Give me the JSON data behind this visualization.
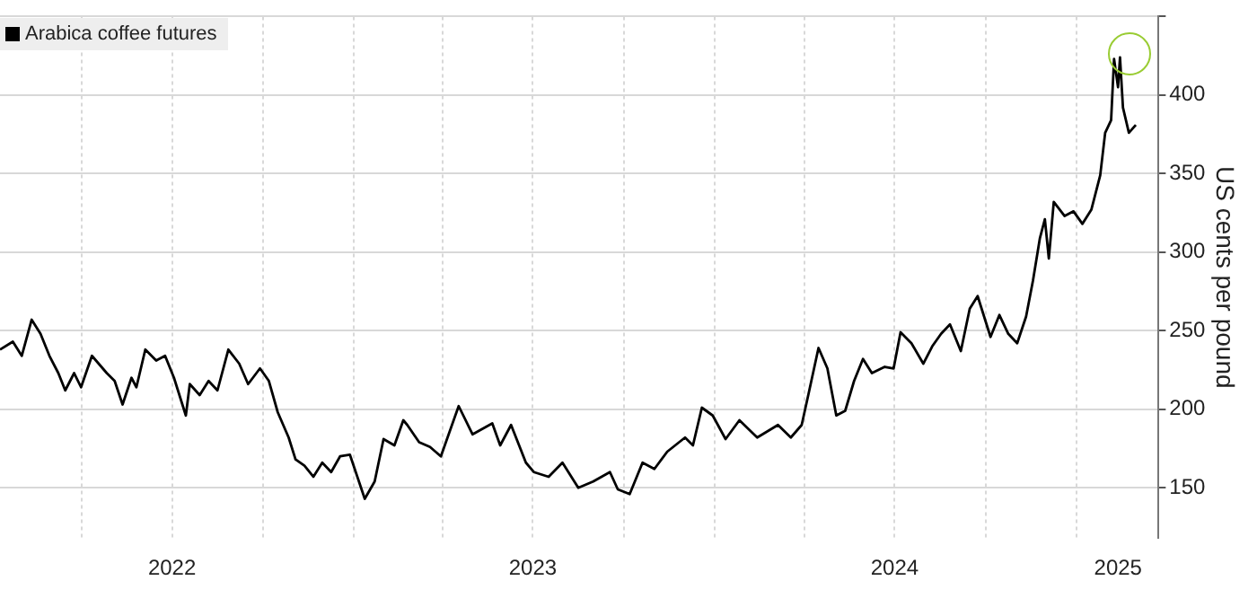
{
  "chart_data": {
    "type": "line",
    "ylabel": "US cents per pound",
    "legend": "top left",
    "grid": true,
    "x": [
      "2022-01-08",
      "2022-01-21",
      "2022-01-30",
      "2022-02-09",
      "2022-02-18",
      "2022-02-27",
      "2022-03-08",
      "2022-03-15",
      "2022-03-24",
      "2022-03-31",
      "2022-04-11",
      "2022-04-26",
      "2022-05-04",
      "2022-05-12",
      "2022-05-21",
      "2022-05-26",
      "2022-06-04",
      "2022-06-15",
      "2022-06-24",
      "2022-07-03",
      "2022-07-15",
      "2022-07-19",
      "2022-07-29",
      "2022-08-07",
      "2022-08-16",
      "2022-08-27",
      "2022-09-07",
      "2022-09-16",
      "2022-09-28",
      "2022-10-07",
      "2022-10-16",
      "2022-10-27",
      "2022-11-03",
      "2022-11-12",
      "2022-11-21",
      "2022-11-30",
      "2022-12-09",
      "2022-12-18",
      "2022-12-28",
      "2023-01-12",
      "2023-01-22",
      "2023-01-31",
      "2023-02-11",
      "2023-02-20",
      "2023-02-24",
      "2023-03-08",
      "2023-03-19",
      "2023-03-30",
      "2023-04-17",
      "2023-05-01",
      "2023-05-21",
      "2023-05-29",
      "2023-06-09",
      "2023-06-24",
      "2023-07-02",
      "2023-07-17",
      "2023-07-31",
      "2023-08-16",
      "2023-08-31",
      "2023-09-17",
      "2023-09-25",
      "2023-10-07",
      "2023-10-20",
      "2023-11-01",
      "2023-11-14",
      "2023-12-02",
      "2023-12-10",
      "2023-12-19",
      "2023-12-30",
      "2024-01-12",
      "2024-01-26",
      "2024-02-13",
      "2024-03-05",
      "2024-03-18",
      "2024-03-29",
      "2024-04-05",
      "2024-04-15",
      "2024-04-24",
      "2024-05-03",
      "2024-05-12",
      "2024-05-21",
      "2024-05-30",
      "2024-06-08",
      "2024-06-21",
      "2024-06-30",
      "2024-07-07",
      "2024-07-18",
      "2024-07-30",
      "2024-08-08",
      "2024-08-17",
      "2024-08-26",
      "2024-09-06",
      "2024-09-15",
      "2024-09-23",
      "2024-10-06",
      "2024-10-15",
      "2024-10-24",
      "2024-11-02",
      "2024-11-11",
      "2024-11-18",
      "2024-11-25",
      "2024-11-30",
      "2024-12-04",
      "2024-12-09",
      "2024-12-20",
      "2024-12-29",
      "2025-01-07",
      "2025-01-16",
      "2025-01-25",
      "2025-01-30",
      "2025-02-05",
      "2025-02-08",
      "2025-02-12",
      "2025-02-14",
      "2025-02-17",
      "2025-02-23",
      "2025-03-02"
    ],
    "series": [
      {
        "name": "Arabica coffee futures",
        "color": "#000000",
        "values": [
          238,
          243,
          234,
          257,
          248,
          234,
          223,
          212,
          223,
          214,
          234,
          223,
          218,
          203,
          220,
          214,
          238,
          231,
          234,
          220,
          196,
          216,
          209,
          218,
          212,
          238,
          229,
          216,
          226,
          218,
          198,
          182,
          168,
          164,
          157,
          166,
          160,
          170,
          171,
          143,
          154,
          181,
          177,
          193,
          190,
          179,
          176,
          170,
          202,
          184,
          191,
          177,
          190,
          166,
          160,
          157,
          166,
          150,
          154,
          160,
          149,
          146,
          166,
          162,
          173,
          182,
          177,
          201,
          196,
          181,
          193,
          182,
          190,
          182,
          190,
          210,
          239,
          226,
          196,
          199,
          218,
          232,
          223,
          227,
          226,
          249,
          242,
          229,
          240,
          248,
          254,
          237,
          264,
          272,
          246,
          260,
          248,
          242,
          259,
          282,
          309,
          321,
          296,
          332,
          323,
          326,
          318,
          327,
          349,
          376,
          384,
          423,
          405,
          424,
          392,
          376,
          381
        ]
      }
    ],
    "xlim": [
      "2022-01-08",
      "2025-03-25"
    ],
    "xticks": [
      {
        "value": "2022-04-01",
        "label": null
      },
      {
        "value": "2022-07-01",
        "label": "2022"
      },
      {
        "value": "2022-10-01",
        "label": null
      },
      {
        "value": "2023-01-01",
        "label": null
      },
      {
        "value": "2023-04-01",
        "label": null
      },
      {
        "value": "2023-07-01",
        "label": "2023"
      },
      {
        "value": "2023-10-01",
        "label": null
      },
      {
        "value": "2024-01-01",
        "label": null
      },
      {
        "value": "2024-04-01",
        "label": null
      },
      {
        "value": "2024-07-01",
        "label": "2024"
      },
      {
        "value": "2024-10-01",
        "label": null
      },
      {
        "value": "2025-01-01",
        "label": null
      },
      {
        "value": "2025-02-12",
        "label": "2025"
      }
    ],
    "ylim": [
      118,
      450
    ],
    "yticks": [
      150,
      200,
      250,
      300,
      350,
      400,
      {
        "value": 450,
        "label": null
      }
    ]
  }
}
